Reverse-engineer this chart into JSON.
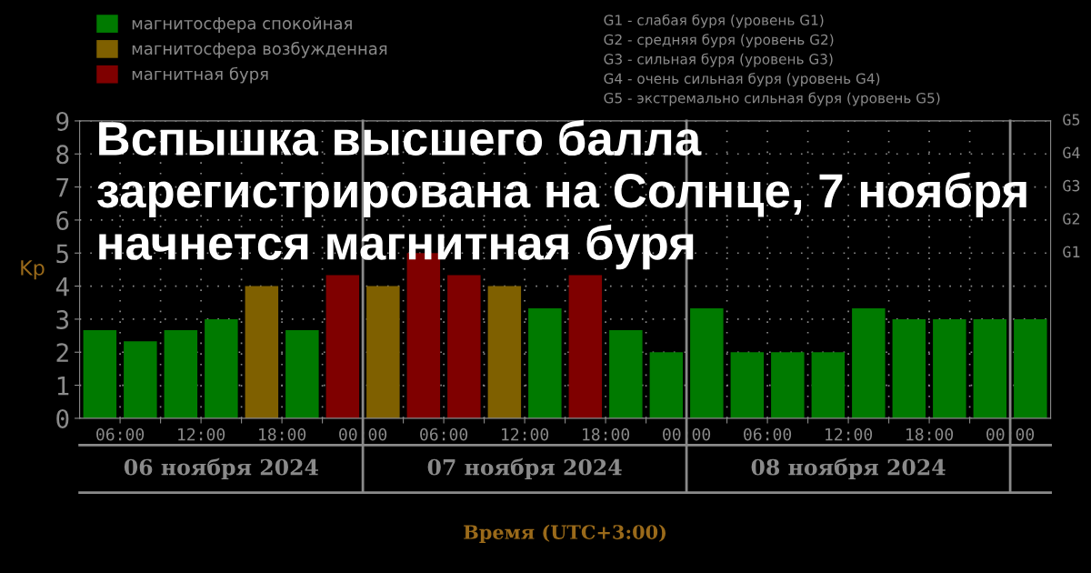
{
  "chart_data": {
    "type": "bar",
    "title": "Вспышка высшего балла зарегистрирована на Солнце, 7 ноября начнется магнитная буря",
    "xlabel": "Время (UTC+3:00)",
    "ylabel": "Kp",
    "x": [
      "2024-11-06T04:30",
      "2024-11-06T07:30",
      "2024-11-06T10:30",
      "2024-11-06T13:30",
      "2024-11-06T16:30",
      "2024-11-06T19:30",
      "2024-11-06T22:30",
      "2024-11-07T01:30",
      "2024-11-07T04:30",
      "2024-11-07T07:30",
      "2024-11-07T10:30",
      "2024-11-07T13:30",
      "2024-11-07T16:30",
      "2024-11-07T19:30",
      "2024-11-07T22:30",
      "2024-11-08T01:30",
      "2024-11-08T04:30",
      "2024-11-08T07:30",
      "2024-11-08T10:30",
      "2024-11-08T13:30",
      "2024-11-08T16:30",
      "2024-11-08T19:30",
      "2024-11-08T22:30",
      "2024-11-09T01:30"
    ],
    "series": [
      {
        "name": "магнитосфера спокойная",
        "color": "#007a00",
        "values": [
          2.67,
          2.33,
          2.67,
          3,
          null,
          2.67,
          null,
          null,
          null,
          null,
          null,
          3.33,
          null,
          2.67,
          2,
          3.33,
          2,
          2,
          2,
          3.33,
          3,
          3,
          3,
          3
        ]
      },
      {
        "name": "магнитосфера возбужденная",
        "color": "#7f6000",
        "values": [
          null,
          null,
          null,
          null,
          4,
          null,
          null,
          4,
          null,
          null,
          4,
          null,
          null,
          null,
          null,
          null,
          null,
          null,
          null,
          null,
          null,
          null,
          null,
          null
        ]
      },
      {
        "name": "магнитная буря",
        "color": "#7f0000",
        "values": [
          null,
          null,
          null,
          null,
          null,
          null,
          4.33,
          null,
          5,
          4.33,
          null,
          null,
          4.33,
          null,
          null,
          null,
          null,
          null,
          null,
          null,
          null,
          null,
          null,
          null
        ]
      }
    ],
    "xlim": [
      "2024-11-06T03:00",
      "2024-11-09T03:00"
    ],
    "xticks": [
      {
        "value": "2024-11-06T06:00",
        "label": "06:00"
      },
      {
        "value": "2024-11-06T09:00",
        "label": null
      },
      {
        "value": "2024-11-06T12:00",
        "label": "12:00"
      },
      {
        "value": "2024-11-06T15:00",
        "label": null
      },
      {
        "value": "2024-11-06T18:00",
        "label": "18:00"
      },
      {
        "value": "2024-11-06T21:00",
        "label": null
      },
      {
        "value": "2024-11-07T00:00",
        "label": "00:00"
      },
      {
        "value": "2024-11-07T03:00",
        "label": null
      },
      {
        "value": "2024-11-07T06:00",
        "label": "06:00"
      },
      {
        "value": "2024-11-07T09:00",
        "label": null
      },
      {
        "value": "2024-11-07T12:00",
        "label": "12:00"
      },
      {
        "value": "2024-11-07T15:00",
        "label": null
      },
      {
        "value": "2024-11-07T18:00",
        "label": "18:00"
      },
      {
        "value": "2024-11-07T21:00",
        "label": null
      },
      {
        "value": "2024-11-08T00:00",
        "label": "00:00"
      },
      {
        "value": "2024-11-08T03:00",
        "label": null
      },
      {
        "value": "2024-11-08T06:00",
        "label": "06:00"
      },
      {
        "value": "2024-11-08T09:00",
        "label": null
      },
      {
        "value": "2024-11-08T12:00",
        "label": "12:00"
      },
      {
        "value": "2024-11-08T15:00",
        "label": null
      },
      {
        "value": "2024-11-08T18:00",
        "label": "18:00"
      },
      {
        "value": "2024-11-08T21:00",
        "label": null
      },
      {
        "value": "2024-11-09T00:00",
        "label": "00:00"
      }
    ],
    "ylim": [
      0,
      9
    ],
    "yticks": [
      0,
      1,
      2,
      3,
      4,
      5,
      6,
      7,
      8,
      9
    ],
    "annotations": [
      "06 ноября 2024",
      "07 ноября 2024",
      "08 ноября 2024",
      "G1",
      "G2",
      "G3",
      "G4",
      "G5",
      "G1 - слабая буря (уровень G1)",
      "G2 - средняя буря (уровень G2)",
      "G3 - сильная буря (уровень G3)",
      "G4 - очень сильная буря (уровень G4)",
      "G5 - экстремально сильная буря (уровень G5)"
    ],
    "grid": true,
    "legend": "top left"
  }
}
